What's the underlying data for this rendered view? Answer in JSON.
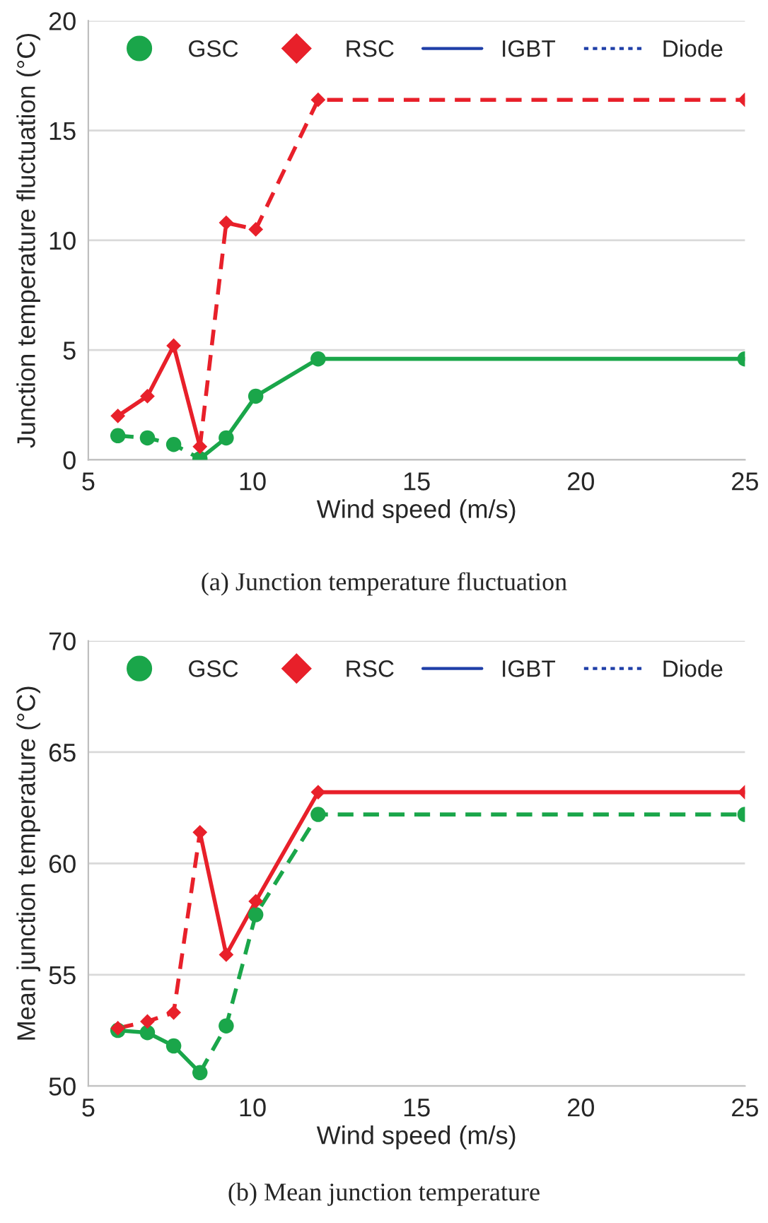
{
  "chart_data": [
    {
      "type": "line",
      "xlabel": "Wind speed (m/s)",
      "ylabel": "Junction temperature fluctuation (°C)",
      "annotations": [
        "(a) Junction temperature fluctuation"
      ],
      "xlim": [
        5,
        25
      ],
      "xticks": [
        5,
        10,
        15,
        20,
        25
      ],
      "ylim": [
        0,
        20
      ],
      "yticks": [
        0,
        5,
        10,
        15,
        20
      ],
      "grid": "y",
      "legend": "top",
      "series": [
        {
          "name": "GSC",
          "type": "scatter",
          "marker": "circle",
          "color": "#1aa64a",
          "x": [
            5.9,
            6.8,
            7.6,
            8.4,
            9.2,
            10.1,
            12,
            25
          ],
          "values": [
            1.1,
            1.0,
            0.7,
            0.05,
            1.0,
            2.9,
            4.6,
            4.6
          ]
        },
        {
          "name": "RSC",
          "type": "scatter",
          "marker": "diamond",
          "color": "#e8202a",
          "x": [
            5.9,
            6.8,
            7.6,
            8.4,
            9.2,
            10.1,
            12,
            25
          ],
          "values": [
            2.0,
            2.9,
            5.2,
            0.6,
            10.8,
            10.5,
            16.4,
            16.4
          ]
        },
        {
          "line_style": "dashed",
          "color": "#1aa64a",
          "x": [
            5.9,
            6.8,
            7.6,
            8.4
          ],
          "values": [
            1.1,
            1.0,
            0.7,
            0.05
          ]
        },
        {
          "line_style": "solid",
          "color": "#1aa64a",
          "x": [
            8.4,
            9.2,
            10.1,
            12,
            25
          ],
          "values": [
            0.05,
            1.0,
            2.9,
            4.6,
            4.6
          ]
        },
        {
          "line_style": "solid",
          "color": "#e8202a",
          "x": [
            5.9,
            6.8,
            7.6,
            8.4
          ],
          "values": [
            2.0,
            2.9,
            5.2,
            0.6
          ]
        },
        {
          "line_style": "dashed",
          "color": "#e8202a",
          "x": [
            8.4,
            9.2,
            10.1,
            12,
            25
          ],
          "values": [
            0.6,
            10.8,
            10.5,
            16.4,
            16.4
          ]
        },
        {
          "name": "IGBT",
          "line_style": "solid",
          "color": "#1f3fa8"
        },
        {
          "name": "Diode",
          "line_style": "dotted",
          "color": "#1f3fa8"
        }
      ]
    },
    {
      "type": "line",
      "xlabel": "Wind speed (m/s)",
      "ylabel": "Mean junction temperature (°C)",
      "annotations": [
        "(b) Mean junction temperature"
      ],
      "xlim": [
        5,
        25
      ],
      "xticks": [
        5,
        10,
        15,
        20,
        25
      ],
      "ylim": [
        50,
        70
      ],
      "yticks": [
        50,
        55,
        60,
        65,
        70
      ],
      "grid": "y",
      "legend": "top",
      "series": [
        {
          "name": "GSC",
          "type": "scatter",
          "marker": "circle",
          "color": "#1aa64a",
          "x": [
            5.9,
            6.8,
            7.6,
            8.4,
            9.2,
            10.1,
            12,
            25
          ],
          "values": [
            52.5,
            52.4,
            51.8,
            50.6,
            52.7,
            57.7,
            62.2,
            62.2
          ]
        },
        {
          "name": "RSC",
          "type": "scatter",
          "marker": "diamond",
          "color": "#e8202a",
          "x": [
            5.9,
            6.8,
            7.6,
            8.4,
            9.2,
            10.1,
            12,
            25
          ],
          "values": [
            52.6,
            52.9,
            53.3,
            61.4,
            55.9,
            58.3,
            63.2,
            63.2
          ]
        },
        {
          "line_style": "solid",
          "color": "#1aa64a",
          "x": [
            5.9,
            6.8,
            7.6,
            8.4
          ],
          "values": [
            52.5,
            52.4,
            51.8,
            50.6
          ]
        },
        {
          "line_style": "dashed",
          "color": "#1aa64a",
          "x": [
            8.4,
            9.2,
            10.1,
            12,
            25
          ],
          "values": [
            50.6,
            52.7,
            57.7,
            62.2,
            62.2
          ]
        },
        {
          "line_style": "dashed",
          "color": "#e8202a",
          "x": [
            5.9,
            6.8,
            7.6,
            8.4
          ],
          "values": [
            52.6,
            52.9,
            53.3,
            61.4
          ]
        },
        {
          "line_style": "solid",
          "color": "#e8202a",
          "x": [
            8.4,
            9.2,
            10.1,
            12,
            25
          ],
          "values": [
            61.4,
            55.9,
            58.3,
            63.2,
            63.2
          ]
        },
        {
          "name": "IGBT",
          "line_style": "solid",
          "color": "#1f3fa8"
        },
        {
          "name": "Diode",
          "line_style": "dotted",
          "color": "#1f3fa8"
        }
      ]
    }
  ]
}
